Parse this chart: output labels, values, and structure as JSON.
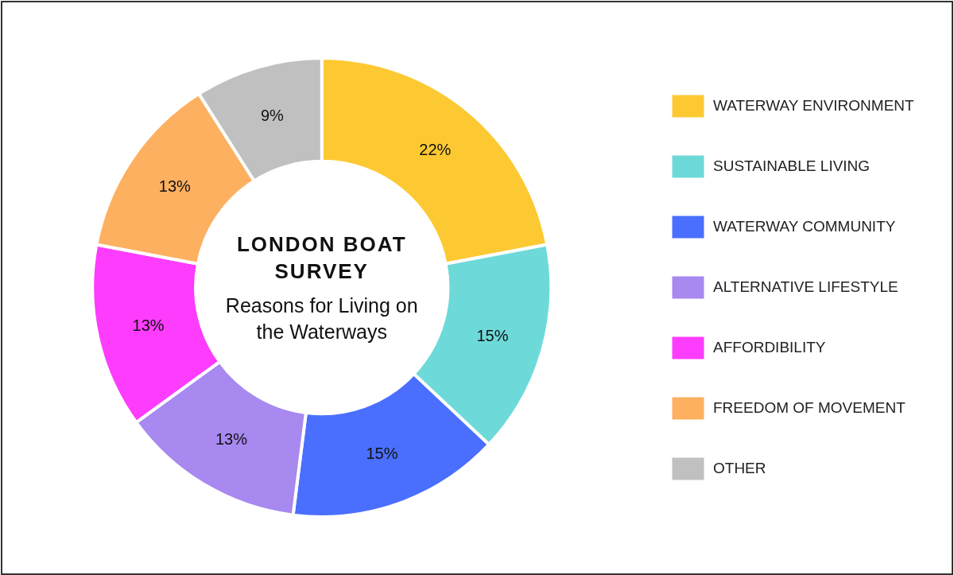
{
  "chart_data": {
    "type": "donut",
    "title": "LONDON BOAT SURVEY",
    "subtitle": "Reasons for Living on the Waterways",
    "categories": [
      "WATERWAY ENVIRONMENT",
      "SUSTAINABLE LIVING",
      "WATERWAY COMMUNITY",
      "ALTERNATIVE LIFESTYLE",
      "AFFORDIBILITY",
      "FREEDOM OF MOVEMENT",
      "OTHER"
    ],
    "values": [
      22,
      15,
      15,
      13,
      13,
      13,
      9
    ],
    "value_labels": [
      "22%",
      "15%",
      "15%",
      "13%",
      "13%",
      "13%",
      "9%"
    ],
    "colors": [
      "#fdc933",
      "#6ddad9",
      "#4a6ffe",
      "#a789f0",
      "#fd3cfd",
      "#fdb060",
      "#c0c0c0"
    ],
    "legend": "right"
  }
}
